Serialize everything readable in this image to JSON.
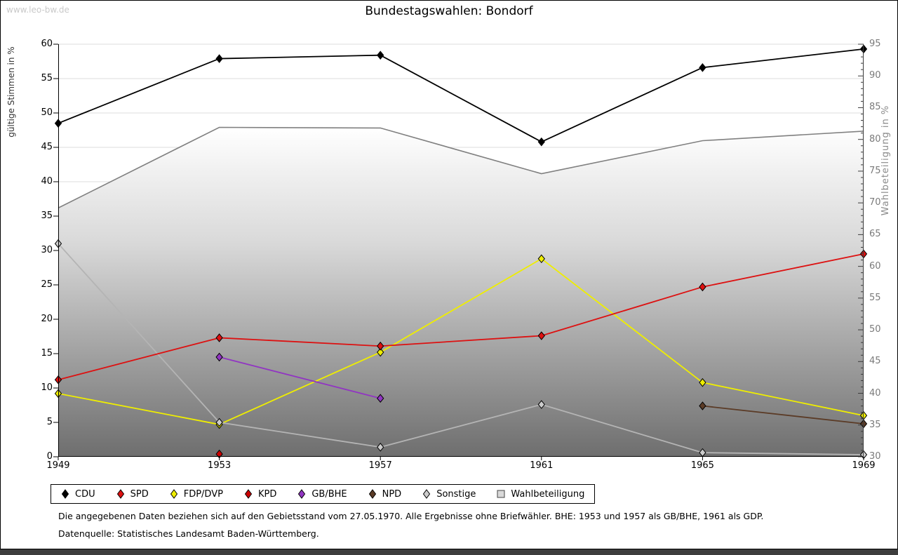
{
  "page": {
    "watermark": "www.leo-bw.de",
    "title": "Bundestagswahlen: Bondorf",
    "footnote1": "Die angegebenen Daten beziehen sich auf den Gebietsstand vom 27.05.1970. Alle Ergebnisse ohne Briefwähler. BHE: 1953 und 1957 als GB/BHE, 1961 als GDP.",
    "footnote2": "Datenquelle: Statistisches Landesamt Baden-Württemberg."
  },
  "chart_data": {
    "type": "line",
    "title": "Bundestagswahlen: Bondorf",
    "x": [
      1949,
      1953,
      1957,
      1961,
      1965,
      1969
    ],
    "ylabel_left": "gültige Stimmen in %",
    "ylabel_right": "Wahlbeteiligung in %",
    "ylim_left": [
      0,
      60
    ],
    "ylim_right": [
      30,
      95
    ],
    "grid": true,
    "legend_position": "bottom",
    "series": [
      {
        "name": "CDU",
        "axis": "left",
        "marker": "diamond",
        "color": "#000000",
        "values": [
          48.5,
          57.9,
          58.4,
          45.8,
          56.6,
          59.3
        ]
      },
      {
        "name": "SPD",
        "axis": "left",
        "marker": "diamond",
        "color": "#dd1111",
        "values": [
          11.2,
          17.3,
          16.1,
          17.6,
          24.7,
          29.5
        ]
      },
      {
        "name": "FDP/DVP",
        "axis": "left",
        "marker": "diamond",
        "color": "#efee00",
        "values": [
          9.2,
          4.7,
          15.2,
          28.8,
          10.8,
          6.0
        ]
      },
      {
        "name": "KPD",
        "axis": "left",
        "marker": "diamond",
        "color": "#cc0000",
        "values": [
          null,
          0.4,
          null,
          null,
          null,
          null
        ]
      },
      {
        "name": "GB/BHE",
        "axis": "left",
        "marker": "diamond",
        "color": "#9135c2",
        "values": [
          null,
          14.5,
          8.5,
          null,
          null,
          null
        ]
      },
      {
        "name": "NPD",
        "axis": "left",
        "marker": "diamond",
        "color": "#5b3b26",
        "values": [
          null,
          null,
          null,
          null,
          7.4,
          4.8
        ]
      },
      {
        "name": "Sonstige",
        "axis": "left",
        "marker": "diamond",
        "color": "#b4b4b4",
        "marker_fill": "#cccccc",
        "values": [
          31.0,
          5.0,
          1.4,
          7.6,
          0.6,
          0.3
        ]
      },
      {
        "name": "Wahlbeteiligung",
        "axis": "right",
        "type": "area",
        "color": "#808080",
        "legend_fill": "#d9d9d9",
        "values": [
          69.2,
          81.9,
          81.8,
          74.6,
          79.8,
          81.3
        ]
      }
    ]
  }
}
